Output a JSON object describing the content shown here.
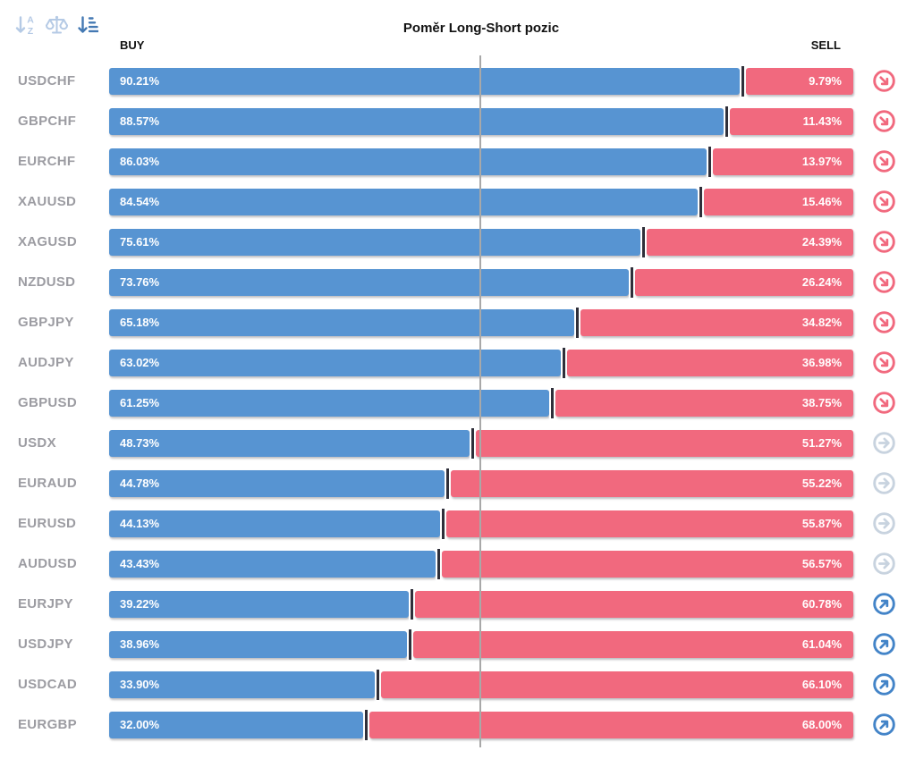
{
  "title": "Poměr Long-Short pozic",
  "columns": {
    "buy": "BUY",
    "sell": "SELL"
  },
  "toolbar": {
    "sort_alpha_icon": "sort-alphabetical-icon",
    "balance_icon": "balance-scale-icon",
    "sort_amount_icon": "sort-by-value-icon"
  },
  "icons": {
    "down": "arrow-down-right-circle-icon",
    "neutral": "arrow-right-circle-icon",
    "up": "arrow-up-right-circle-icon"
  },
  "colors": {
    "buy_bar": "#5794d2",
    "sell_bar": "#f1697e",
    "bar_divider": "#2f2f3a",
    "center_line": "#a8a8a8",
    "symbol_label": "#9c9ca2",
    "icon_down": "#f1697e",
    "icon_neutral": "#c8d3df",
    "icon_up": "#4384c8",
    "toolbar_inactive": "#b5cae5",
    "toolbar_active": "#4479b3"
  },
  "chart_data": {
    "type": "bar",
    "orientation": "horizontal-stacked",
    "title": "Poměr Long-Short pozic",
    "xlabel": "",
    "ylabel": "",
    "xlim": [
      0,
      100
    ],
    "legend_position": "top",
    "grid": false,
    "categories": [
      "USDCHF",
      "GBPCHF",
      "EURCHF",
      "XAUUSD",
      "XAGUSD",
      "NZDUSD",
      "GBPJPY",
      "AUDJPY",
      "GBPUSD",
      "USDX",
      "EURAUD",
      "EURUSD",
      "AUDUSD",
      "EURJPY",
      "USDJPY",
      "USDCAD",
      "EURGBP"
    ],
    "series": [
      {
        "name": "BUY",
        "values": [
          90.21,
          88.57,
          86.03,
          84.54,
          75.61,
          73.76,
          65.18,
          63.02,
          61.25,
          48.73,
          44.78,
          44.13,
          43.43,
          39.22,
          38.96,
          33.9,
          32.0
        ]
      },
      {
        "name": "SELL",
        "values": [
          9.79,
          11.43,
          13.97,
          15.46,
          24.39,
          26.24,
          34.82,
          36.98,
          38.75,
          51.27,
          55.22,
          55.87,
          56.57,
          60.78,
          61.04,
          66.1,
          68.0
        ]
      }
    ],
    "rows": [
      {
        "symbol": "USDCHF",
        "buy": 90.21,
        "sell": 9.79,
        "buy_label": "90.21%",
        "sell_label": "9.79%",
        "signal": "down"
      },
      {
        "symbol": "GBPCHF",
        "buy": 88.57,
        "sell": 11.43,
        "buy_label": "88.57%",
        "sell_label": "11.43%",
        "signal": "down"
      },
      {
        "symbol": "EURCHF",
        "buy": 86.03,
        "sell": 13.97,
        "buy_label": "86.03%",
        "sell_label": "13.97%",
        "signal": "down"
      },
      {
        "symbol": "XAUUSD",
        "buy": 84.54,
        "sell": 15.46,
        "buy_label": "84.54%",
        "sell_label": "15.46%",
        "signal": "down"
      },
      {
        "symbol": "XAGUSD",
        "buy": 75.61,
        "sell": 24.39,
        "buy_label": "75.61%",
        "sell_label": "24.39%",
        "signal": "down"
      },
      {
        "symbol": "NZDUSD",
        "buy": 73.76,
        "sell": 26.24,
        "buy_label": "73.76%",
        "sell_label": "26.24%",
        "signal": "down"
      },
      {
        "symbol": "GBPJPY",
        "buy": 65.18,
        "sell": 34.82,
        "buy_label": "65.18%",
        "sell_label": "34.82%",
        "signal": "down"
      },
      {
        "symbol": "AUDJPY",
        "buy": 63.02,
        "sell": 36.98,
        "buy_label": "63.02%",
        "sell_label": "36.98%",
        "signal": "down"
      },
      {
        "symbol": "GBPUSD",
        "buy": 61.25,
        "sell": 38.75,
        "buy_label": "61.25%",
        "sell_label": "38.75%",
        "signal": "down"
      },
      {
        "symbol": "USDX",
        "buy": 48.73,
        "sell": 51.27,
        "buy_label": "48.73%",
        "sell_label": "51.27%",
        "signal": "neutral"
      },
      {
        "symbol": "EURAUD",
        "buy": 44.78,
        "sell": 55.22,
        "buy_label": "44.78%",
        "sell_label": "55.22%",
        "signal": "neutral"
      },
      {
        "symbol": "EURUSD",
        "buy": 44.13,
        "sell": 55.87,
        "buy_label": "44.13%",
        "sell_label": "55.87%",
        "signal": "neutral"
      },
      {
        "symbol": "AUDUSD",
        "buy": 43.43,
        "sell": 56.57,
        "buy_label": "43.43%",
        "sell_label": "56.57%",
        "signal": "neutral"
      },
      {
        "symbol": "EURJPY",
        "buy": 39.22,
        "sell": 60.78,
        "buy_label": "39.22%",
        "sell_label": "60.78%",
        "signal": "up"
      },
      {
        "symbol": "USDJPY",
        "buy": 38.96,
        "sell": 61.04,
        "buy_label": "38.96%",
        "sell_label": "61.04%",
        "signal": "up"
      },
      {
        "symbol": "USDCAD",
        "buy": 33.9,
        "sell": 66.1,
        "buy_label": "33.90%",
        "sell_label": "66.10%",
        "signal": "up"
      },
      {
        "symbol": "EURGBP",
        "buy": 32.0,
        "sell": 68.0,
        "buy_label": "32.00%",
        "sell_label": "68.00%",
        "signal": "up"
      }
    ]
  }
}
